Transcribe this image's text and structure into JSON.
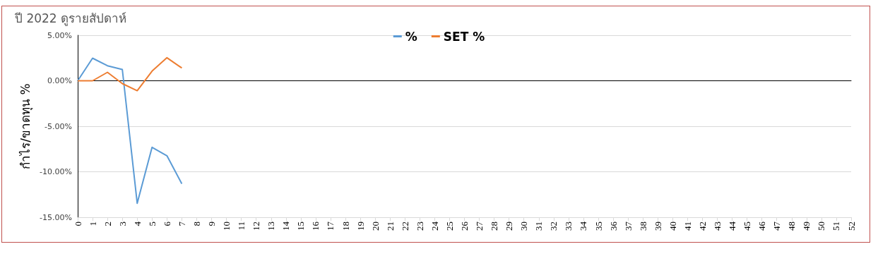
{
  "chart_data": {
    "type": "line",
    "title": "ปี 2022 ดูรายสัปดาห์",
    "ylabel": "กำไร/ขาดทุน %",
    "categories": [
      "0",
      "1",
      "2",
      "3",
      "4",
      "5",
      "6",
      "7",
      "8",
      "9",
      "10",
      "11",
      "12",
      "13",
      "14",
      "15",
      "16",
      "17",
      "18",
      "19",
      "20",
      "21",
      "22",
      "23",
      "24",
      "25",
      "26",
      "27",
      "28",
      "29",
      "30",
      "31",
      "32",
      "33",
      "34",
      "35",
      "36",
      "37",
      "38",
      "39",
      "40",
      "41",
      "42",
      "43",
      "44",
      "45",
      "46",
      "47",
      "48",
      "49",
      "50",
      "51",
      "52"
    ],
    "series": [
      {
        "name": "%",
        "color": "#5b9bd5",
        "values": [
          0,
          2.48,
          1.65,
          1.24,
          -13.46,
          -7.31,
          -8.24,
          -11.32,
          null,
          null,
          null,
          null,
          null,
          null,
          null,
          null,
          null,
          null,
          null,
          null,
          null,
          null,
          null,
          null,
          null,
          null,
          null,
          null,
          null,
          null,
          null,
          null,
          null,
          null,
          null,
          null,
          null,
          null,
          null,
          null,
          null,
          null,
          null,
          null,
          null,
          null,
          null,
          null,
          null,
          null,
          null,
          null,
          null
        ]
      },
      {
        "name": "SET %",
        "color": "#ed7d31",
        "values": [
          0,
          0,
          0.93,
          -0.31,
          -1.09,
          1.06,
          2.53,
          1.4,
          null,
          null,
          null,
          null,
          null,
          null,
          null,
          null,
          null,
          null,
          null,
          null,
          null,
          null,
          null,
          null,
          null,
          null,
          null,
          null,
          null,
          null,
          null,
          null,
          null,
          null,
          null,
          null,
          null,
          null,
          null,
          null,
          null,
          null,
          null,
          null,
          null,
          null,
          null,
          null,
          null,
          null,
          null,
          null,
          null
        ]
      }
    ],
    "ylim": [
      -15,
      5
    ],
    "yticks": [
      {
        "value": -15,
        "label": "-15.00%"
      },
      {
        "value": -10,
        "label": "-10.00%"
      },
      {
        "value": -5,
        "label": "-5.00%"
      },
      {
        "value": 0,
        "label": "0.00%"
      },
      {
        "value": 5,
        "label": "5.00%"
      }
    ],
    "grid": "y",
    "legend": "top",
    "marker": "none",
    "line_style": "solid"
  }
}
